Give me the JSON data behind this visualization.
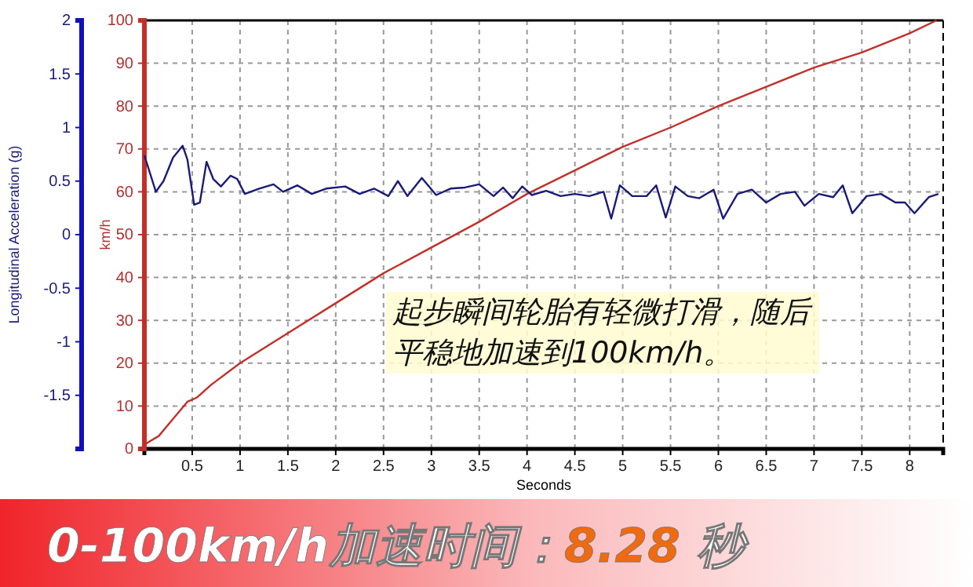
{
  "chart_data": {
    "type": "line",
    "title": "0-100km/h加速时间：8.28 秒",
    "xlabel": "Seconds",
    "ylabel": "km/h",
    "y2label": "Longitudinal Acceleration (g)",
    "annotations": [
      "起步瞬间轮胎有轻微打滑，随后",
      "平稳地加速到100km/h。"
    ],
    "xlim": [
      0,
      8.35
    ],
    "xticks": [
      0.5,
      1,
      1.5,
      2,
      2.5,
      3,
      3.5,
      4,
      4.5,
      5,
      5.5,
      6,
      6.5,
      7,
      7.5,
      8
    ],
    "ylim": [
      0,
      100
    ],
    "yticks": [
      0,
      10,
      20,
      30,
      40,
      50,
      60,
      70,
      80,
      90,
      100
    ],
    "y2lim": [
      -2,
      2
    ],
    "y2ticks": [
      -1.5,
      -1,
      -0.5,
      0,
      0.5,
      1,
      1.5,
      2
    ],
    "grid": true,
    "series": [
      {
        "color": "#c0302a",
        "x": [
          0,
          0.15,
          0.3,
          0.45,
          0.55,
          0.7,
          1,
          1.5,
          2,
          2.5,
          3,
          3.5,
          4,
          4.5,
          5,
          5.5,
          6,
          6.5,
          7,
          7.5,
          8,
          8.28
        ],
        "values": [
          1,
          3,
          7,
          11,
          12,
          15,
          20,
          27,
          34,
          41,
          47,
          53,
          59.5,
          65,
          70.5,
          75,
          80,
          84.5,
          89,
          92.5,
          97,
          100
        ]
      },
      {
        "color": "#1a1a78",
        "axis": "y2",
        "x": [
          0,
          0.12,
          0.2,
          0.3,
          0.4,
          0.45,
          0.52,
          0.58,
          0.65,
          0.72,
          0.8,
          0.9,
          0.97,
          1.05,
          1.2,
          1.35,
          1.45,
          1.6,
          1.75,
          1.9,
          2.1,
          2.25,
          2.4,
          2.55,
          2.65,
          2.75,
          2.9,
          3.05,
          3.2,
          3.35,
          3.5,
          3.65,
          3.75,
          3.85,
          3.95,
          4.05,
          4.2,
          4.35,
          4.5,
          4.65,
          4.8,
          4.88,
          4.97,
          5.1,
          5.25,
          5.35,
          5.45,
          5.55,
          5.68,
          5.8,
          5.95,
          6.05,
          6.2,
          6.35,
          6.5,
          6.65,
          6.8,
          6.9,
          7.05,
          7.2,
          7.3,
          7.4,
          7.55,
          7.7,
          7.85,
          7.95,
          8.05,
          8.2,
          8.3
        ],
        "values": [
          0.74,
          0.4,
          0.5,
          0.72,
          0.83,
          0.7,
          0.28,
          0.3,
          0.68,
          0.52,
          0.45,
          0.55,
          0.52,
          0.38,
          0.43,
          0.47,
          0.4,
          0.46,
          0.38,
          0.43,
          0.45,
          0.38,
          0.43,
          0.36,
          0.5,
          0.36,
          0.53,
          0.37,
          0.43,
          0.44,
          0.47,
          0.36,
          0.44,
          0.34,
          0.45,
          0.37,
          0.41,
          0.36,
          0.38,
          0.36,
          0.4,
          0.15,
          0.46,
          0.36,
          0.36,
          0.46,
          0.16,
          0.45,
          0.36,
          0.34,
          0.42,
          0.15,
          0.38,
          0.42,
          0.3,
          0.38,
          0.4,
          0.27,
          0.38,
          0.35,
          0.46,
          0.2,
          0.36,
          0.38,
          0.3,
          0.3,
          0.2,
          0.35,
          0.38
        ]
      }
    ]
  }
}
